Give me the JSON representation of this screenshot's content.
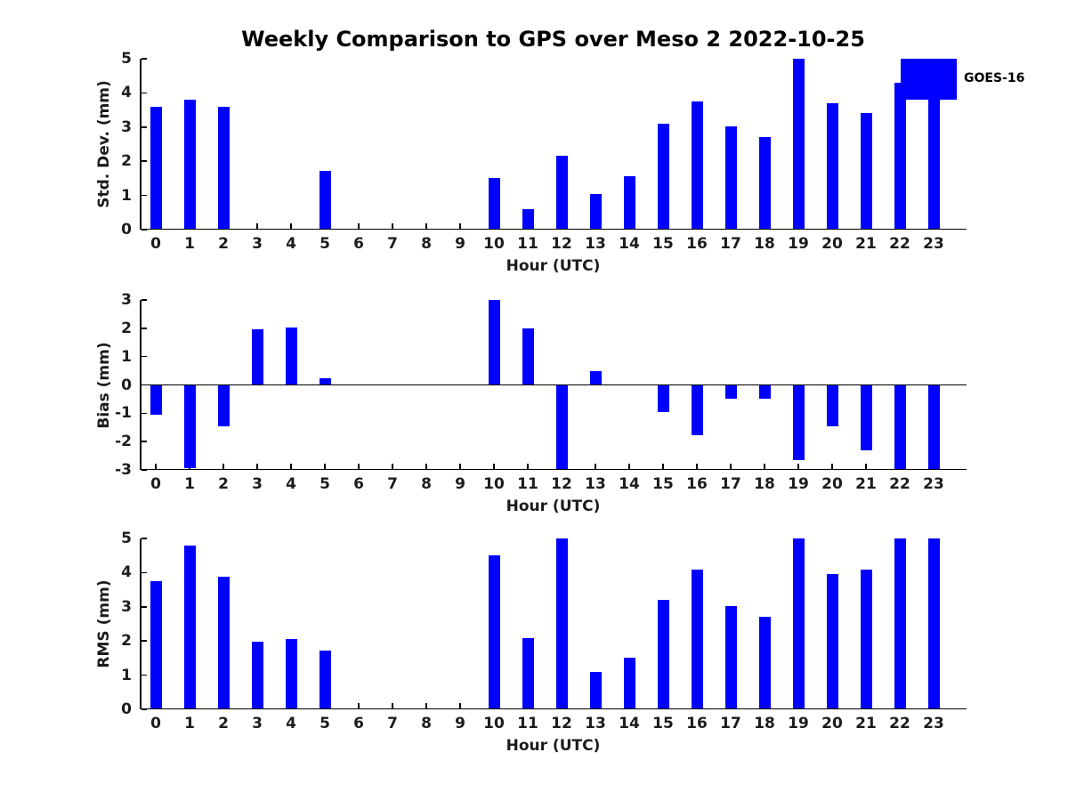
{
  "title": "Weekly Comparison to GPS over Meso 2 2022-10-25",
  "legend": {
    "label": "GOES-16",
    "color": "#0000FF",
    "position": "upper-right"
  },
  "accent_color": "#0000FF",
  "chart_data": [
    {
      "type": "bar",
      "title": "Weekly Comparison to GPS over Meso 2 2022-10-25",
      "ylabel": "Std. Dev. (mm)",
      "xlabel": "Hour (UTC)",
      "ylim": [
        0,
        5
      ],
      "yticks": [
        0,
        1,
        2,
        3,
        4,
        5
      ],
      "grid": false,
      "bar_color": "#0000FF",
      "series_name": "GOES-16",
      "categories": [
        "0",
        "1",
        "2",
        "3",
        "4",
        "5",
        "6",
        "7",
        "8",
        "9",
        "10",
        "11",
        "12",
        "13",
        "14",
        "15",
        "16",
        "17",
        "18",
        "19",
        "20",
        "21",
        "22",
        "23"
      ],
      "values": [
        3.6,
        3.8,
        3.6,
        0,
        0,
        1.72,
        0,
        0,
        0,
        0,
        1.52,
        0.6,
        2.17,
        1.03,
        1.55,
        3.1,
        3.75,
        3.02,
        2.72,
        5.0,
        3.7,
        3.4,
        4.3,
        3.85
      ]
    },
    {
      "type": "bar",
      "title": "",
      "ylabel": "Bias (mm)",
      "xlabel": "Hour (UTC)",
      "ylim": [
        -3,
        3
      ],
      "yticks": [
        -3,
        -2,
        -1,
        0,
        1,
        2,
        3
      ],
      "grid": false,
      "bar_color": "#0000FF",
      "series_name": "GOES-16",
      "categories": [
        "0",
        "1",
        "2",
        "3",
        "4",
        "5",
        "6",
        "7",
        "8",
        "9",
        "10",
        "11",
        "12",
        "13",
        "14",
        "15",
        "16",
        "17",
        "18",
        "19",
        "20",
        "21",
        "22",
        "23"
      ],
      "values": [
        -1.05,
        -2.95,
        -1.45,
        1.97,
        2.04,
        0.22,
        0,
        0,
        0,
        0,
        3.0,
        2.0,
        -3.0,
        0.5,
        0,
        -0.95,
        -1.78,
        -0.48,
        -0.48,
        -2.65,
        -1.45,
        -2.32,
        -3.0,
        -3.0
      ]
    },
    {
      "type": "bar",
      "title": "",
      "ylabel": "RMS (mm)",
      "xlabel": "Hour (UTC)",
      "ylim": [
        0,
        5
      ],
      "yticks": [
        0,
        1,
        2,
        3,
        4,
        5
      ],
      "grid": false,
      "bar_color": "#0000FF",
      "series_name": "GOES-16",
      "categories": [
        "0",
        "1",
        "2",
        "3",
        "4",
        "5",
        "6",
        "7",
        "8",
        "9",
        "10",
        "11",
        "12",
        "13",
        "14",
        "15",
        "16",
        "17",
        "18",
        "19",
        "20",
        "21",
        "22",
        "23"
      ],
      "values": [
        3.75,
        4.8,
        3.87,
        1.97,
        2.05,
        1.73,
        0,
        0,
        0,
        0,
        4.5,
        2.08,
        5.0,
        1.1,
        1.5,
        3.2,
        4.1,
        3.03,
        2.72,
        5.0,
        3.97,
        4.1,
        5.0,
        5.0
      ]
    }
  ]
}
